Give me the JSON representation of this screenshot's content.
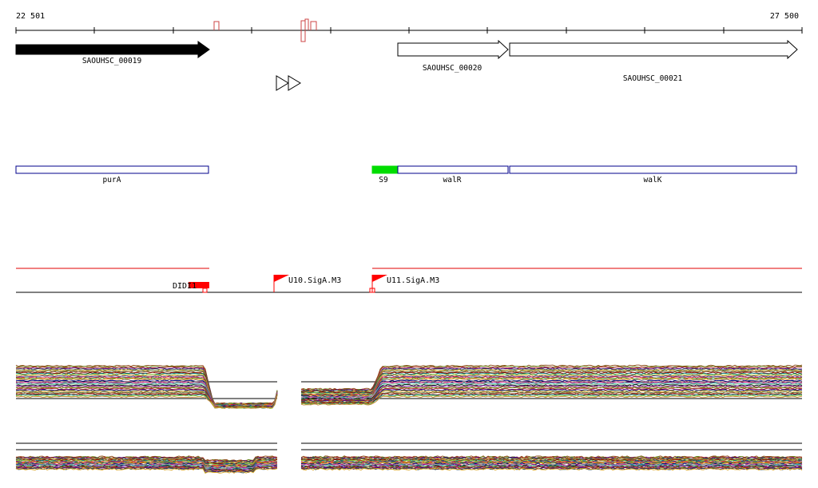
{
  "coordinates": {
    "start": "22 501",
    "end": "27 500"
  },
  "genes": [
    {
      "label": "SAOUHSC_00019",
      "filled": true,
      "strand": "+"
    },
    {
      "label": "SAOUHSC_00020",
      "filled": false,
      "strand": "+"
    },
    {
      "label": "SAOUHSC_00021",
      "filled": false,
      "strand": "+"
    }
  ],
  "annotations": [
    {
      "label": "purA",
      "color": "#00008b",
      "filled": false
    },
    {
      "label": "S9",
      "color": "#00dd00",
      "filled": true
    },
    {
      "label": "walR",
      "color": "#00008b",
      "filled": false
    },
    {
      "label": "walK",
      "color": "#00008b",
      "filled": false
    }
  ],
  "features": [
    {
      "label": "DIDI1"
    },
    {
      "label": "U10.SigA.M3"
    },
    {
      "label": "U11.SigA.M3"
    }
  ],
  "colors": {
    "forward_gene": "#000000",
    "annotation_border": "#00008b",
    "s9": "#00dd00",
    "track_red": "#e00000",
    "signal_marker": "#ff0000",
    "terminator_marker": "#cc4444"
  },
  "icons": {
    "terminator": "double-triangle-icon",
    "promoter": "flag-icon"
  }
}
